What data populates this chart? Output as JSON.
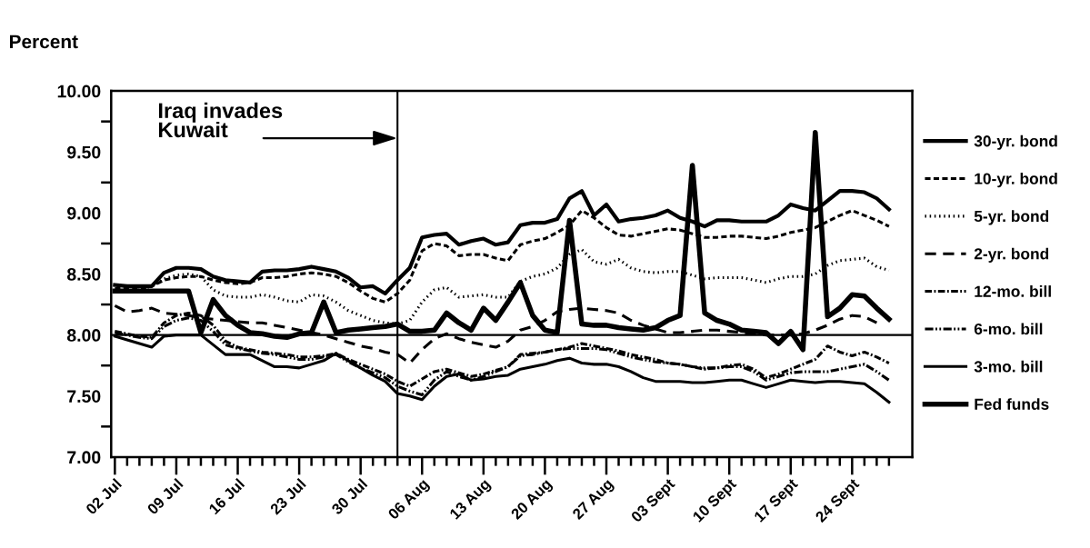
{
  "chart_data": {
    "type": "line",
    "ylabel": "Percent",
    "legend": "right",
    "marker": "none",
    "categories": [
      "02 Jul",
      null,
      null,
      null,
      null,
      "09 Jul",
      null,
      null,
      null,
      null,
      "16 Jul",
      null,
      null,
      null,
      null,
      "23 Jul",
      null,
      null,
      null,
      null,
      "30 Jul",
      null,
      null,
      null,
      null,
      "06 Aug",
      null,
      null,
      null,
      null,
      "13 Aug",
      null,
      null,
      null,
      null,
      "20 Aug",
      null,
      null,
      null,
      null,
      "27 Aug",
      null,
      null,
      null,
      null,
      "03 Sept",
      null,
      null,
      null,
      null,
      "10 Sept",
      null,
      null,
      null,
      null,
      "17 Sept",
      null,
      null,
      null,
      null,
      "24 Sept",
      null,
      null,
      null
    ],
    "ylim": [
      7,
      10
    ],
    "yticks": [
      {
        "value": 7,
        "label": "7.00"
      },
      {
        "value": 7.25,
        "label": null
      },
      {
        "value": 7.5,
        "label": "7.50"
      },
      {
        "value": 7.75,
        "label": null
      },
      {
        "value": 8,
        "label": "8.00"
      },
      {
        "value": 8.25,
        "label": null
      },
      {
        "value": 8.5,
        "label": "8.50"
      },
      {
        "value": 8.75,
        "label": null
      },
      {
        "value": 9,
        "label": "9.00"
      },
      {
        "value": 9.25,
        "label": null
      },
      {
        "value": 9.5,
        "label": "9.50"
      },
      {
        "value": 9.75,
        "label": null
      },
      {
        "value": 10,
        "label": "10.00"
      }
    ],
    "ref_lines": [
      {
        "axis": "y",
        "value": 8,
        "label": null
      }
    ],
    "annotations": [
      "Iraq invades\nKuwait"
    ],
    "series": [
      {
        "name": "30-yr. bond",
        "color": "#000000",
        "line_style": "solid",
        "values": [
          8.41,
          8.4,
          8.4,
          8.4,
          8.51,
          8.55,
          8.55,
          8.54,
          8.48,
          8.45,
          8.44,
          8.43,
          8.52,
          8.53,
          8.53,
          8.54,
          8.56,
          8.54,
          8.52,
          8.47,
          8.39,
          8.4,
          8.34,
          8.45,
          8.55,
          8.8,
          8.82,
          8.83,
          8.74,
          8.77,
          8.79,
          8.74,
          8.76,
          8.9,
          8.92,
          8.92,
          8.95,
          9.12,
          9.18,
          8.98,
          9.07,
          8.93,
          8.95,
          8.96,
          8.98,
          9.02,
          8.96,
          8.93,
          8.89,
          8.94,
          8.94,
          8.93,
          8.93,
          8.93,
          8.98,
          9.07,
          9.04,
          9.02,
          9.1,
          9.18,
          9.18,
          9.17,
          9.12,
          9.03
        ]
      },
      {
        "name": "10-yr. bond",
        "color": "#000000",
        "line_style": "dashed",
        "values": [
          8.38,
          8.38,
          8.38,
          8.4,
          8.45,
          8.47,
          8.48,
          8.48,
          8.45,
          8.43,
          8.42,
          8.43,
          8.47,
          8.47,
          8.48,
          8.5,
          8.51,
          8.5,
          8.48,
          8.43,
          8.36,
          8.3,
          8.27,
          8.34,
          8.45,
          8.69,
          8.75,
          8.73,
          8.65,
          8.66,
          8.66,
          8.63,
          8.61,
          8.74,
          8.77,
          8.79,
          8.84,
          8.9,
          9.02,
          8.96,
          8.88,
          8.82,
          8.81,
          8.83,
          8.85,
          8.87,
          8.86,
          8.83,
          8.8,
          8.8,
          8.81,
          8.81,
          8.8,
          8.79,
          8.81,
          8.84,
          8.86,
          8.88,
          8.93,
          8.98,
          9.02,
          8.98,
          8.94,
          8.89
        ]
      },
      {
        "name": "5-yr. bond",
        "color": "#000000",
        "line_style": "dotted",
        "values": [
          8.36,
          8.36,
          8.37,
          8.4,
          8.46,
          8.49,
          8.5,
          8.48,
          8.37,
          8.32,
          8.31,
          8.31,
          8.33,
          8.31,
          8.28,
          8.27,
          8.33,
          8.32,
          8.27,
          8.2,
          8.16,
          8.12,
          8.1,
          8.09,
          8.12,
          8.27,
          8.37,
          8.39,
          8.31,
          8.32,
          8.33,
          8.31,
          8.31,
          8.44,
          8.48,
          8.5,
          8.55,
          8.66,
          8.7,
          8.6,
          8.58,
          8.62,
          8.55,
          8.52,
          8.51,
          8.52,
          8.52,
          8.49,
          8.46,
          8.47,
          8.47,
          8.47,
          8.45,
          8.43,
          8.46,
          8.48,
          8.48,
          8.5,
          8.57,
          8.61,
          8.62,
          8.63,
          8.56,
          8.53
        ]
      },
      {
        "name": "2-yr. bond",
        "color": "#000000",
        "line_style": "longdash",
        "values": [
          8.24,
          8.19,
          8.2,
          8.22,
          8.18,
          8.17,
          8.16,
          8.14,
          8.13,
          8.12,
          8.11,
          8.1,
          8.1,
          8.08,
          8.06,
          8.04,
          8.02,
          8.0,
          7.97,
          7.94,
          7.91,
          7.89,
          7.86,
          7.84,
          7.77,
          7.88,
          7.97,
          8.01,
          7.97,
          7.94,
          7.92,
          7.9,
          7.95,
          8.04,
          8.07,
          8.12,
          8.19,
          8.21,
          8.22,
          8.21,
          8.2,
          8.18,
          8.12,
          8.08,
          8.05,
          8.02,
          8.02,
          8.03,
          8.04,
          8.04,
          8.03,
          8.02,
          8.01,
          8.0,
          8.0,
          8.0,
          8.01,
          8.04,
          8.08,
          8.13,
          8.16,
          8.15,
          8.1,
          null
        ]
      },
      {
        "name": "12-mo. bill",
        "color": "#000000",
        "line_style": "dashdot",
        "values": [
          8.03,
          8.01,
          7.99,
          7.98,
          8.1,
          8.16,
          8.18,
          8.16,
          8.08,
          7.95,
          7.9,
          7.88,
          7.86,
          7.85,
          7.84,
          7.82,
          7.82,
          7.83,
          7.85,
          7.8,
          7.76,
          7.72,
          7.68,
          7.62,
          7.58,
          7.64,
          7.7,
          7.72,
          7.69,
          7.66,
          7.68,
          7.71,
          7.74,
          7.84,
          7.85,
          7.86,
          7.88,
          7.9,
          7.93,
          7.91,
          7.89,
          7.87,
          7.84,
          7.82,
          7.8,
          7.77,
          7.76,
          7.74,
          7.72,
          7.73,
          7.75,
          7.76,
          7.72,
          7.65,
          7.68,
          7.72,
          7.76,
          7.8,
          7.91,
          7.86,
          7.83,
          7.86,
          7.82,
          7.77
        ]
      },
      {
        "name": "6-mo. bill",
        "color": "#000000",
        "line_style": "dashdotdot",
        "values": [
          8.02,
          8.0,
          7.98,
          7.97,
          8.07,
          8.12,
          8.14,
          8.12,
          8.03,
          7.92,
          7.89,
          7.87,
          7.85,
          7.84,
          7.82,
          7.8,
          7.8,
          7.82,
          7.84,
          7.78,
          7.73,
          7.69,
          7.65,
          7.58,
          7.54,
          7.51,
          7.63,
          7.7,
          7.66,
          7.63,
          7.66,
          7.7,
          7.74,
          7.83,
          7.84,
          7.86,
          7.88,
          7.89,
          7.89,
          7.89,
          7.88,
          7.85,
          7.82,
          7.8,
          7.78,
          7.77,
          7.76,
          7.74,
          7.73,
          7.73,
          7.74,
          7.74,
          7.7,
          7.63,
          7.66,
          7.69,
          7.7,
          7.7,
          7.7,
          7.72,
          7.74,
          7.76,
          7.7,
          7.63
        ]
      },
      {
        "name": "3-mo. bill",
        "color": "#000000",
        "line_style": "solid",
        "values": [
          7.99,
          7.96,
          7.93,
          7.9,
          7.99,
          8.0,
          8.0,
          8.0,
          7.92,
          7.84,
          7.84,
          7.84,
          7.79,
          7.74,
          7.74,
          7.73,
          7.76,
          7.79,
          7.85,
          7.79,
          7.73,
          7.67,
          7.62,
          7.52,
          7.5,
          7.47,
          7.58,
          7.66,
          7.68,
          7.63,
          7.64,
          7.66,
          7.67,
          7.72,
          7.74,
          7.76,
          7.79,
          7.81,
          7.77,
          7.76,
          7.76,
          7.74,
          7.7,
          7.65,
          7.62,
          7.62,
          7.62,
          7.61,
          7.61,
          7.62,
          7.63,
          7.63,
          7.6,
          7.57,
          7.6,
          7.63,
          7.62,
          7.61,
          7.62,
          7.62,
          7.61,
          7.6,
          7.53,
          7.45
        ]
      },
      {
        "name": "Fed funds",
        "color": "#000000",
        "line_style": "solid",
        "values": [
          8.36,
          8.36,
          8.36,
          8.36,
          8.36,
          8.36,
          8.36,
          8.02,
          8.29,
          8.16,
          8.08,
          8.02,
          8.01,
          7.99,
          7.98,
          8.01,
          8.02,
          8.27,
          8.02,
          8.04,
          8.05,
          8.06,
          8.07,
          8.09,
          8.03,
          8.03,
          8.04,
          8.18,
          8.1,
          8.04,
          8.22,
          8.12,
          8.27,
          8.43,
          8.16,
          8.04,
          8.02,
          8.94,
          8.09,
          8.08,
          8.08,
          8.06,
          8.05,
          8.04,
          8.06,
          8.12,
          8.16,
          9.39,
          8.18,
          8.12,
          8.09,
          8.04,
          8.03,
          8.02,
          7.93,
          8.03,
          7.88,
          9.66,
          8.15,
          8.22,
          8.33,
          8.32,
          8.22,
          8.13
        ]
      }
    ]
  }
}
